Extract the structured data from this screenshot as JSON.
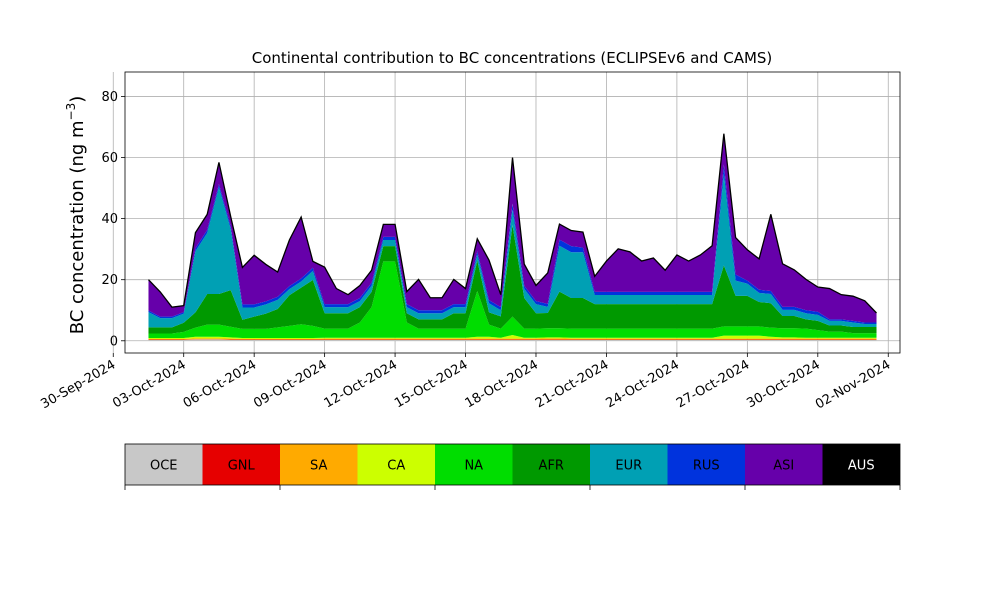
{
  "chart_data": {
    "type": "area",
    "stacked": true,
    "title": "Continental contribution to BC concentrations (ECLIPSEv6 and CAMS)",
    "ylabel": "BC concentration (ng m",
    "ylabel_unit_sup": "−3",
    "ylabel_close": ")",
    "ylim": [
      -4,
      88
    ],
    "yticks": [
      0,
      20,
      40,
      60,
      80
    ],
    "xlim": [
      "2024-09-30T12:00",
      "2024-11-02T12:00"
    ],
    "xticks": [
      "2024-09-30",
      "2024-10-03",
      "2024-10-06",
      "2024-10-09",
      "2024-10-12",
      "2024-10-15",
      "2024-10-18",
      "2024-10-21",
      "2024-10-24",
      "2024-10-27",
      "2024-10-30",
      "2024-11-02"
    ],
    "xtick_labels": [
      "30-Sep-2024",
      "03-Oct-2024",
      "06-Oct-2024",
      "09-Oct-2024",
      "12-Oct-2024",
      "15-Oct-2024",
      "18-Oct-2024",
      "21-Oct-2024",
      "24-Oct-2024",
      "27-Oct-2024",
      "30-Oct-2024",
      "02-Nov-2024"
    ],
    "grid": true,
    "x": [
      "2024-10-01T12:00",
      "2024-10-02T00:00",
      "2024-10-02T12:00",
      "2024-10-03T00:00",
      "2024-10-03T12:00",
      "2024-10-04T00:00",
      "2024-10-04T12:00",
      "2024-10-05T00:00",
      "2024-10-05T12:00",
      "2024-10-06T00:00",
      "2024-10-06T12:00",
      "2024-10-07T00:00",
      "2024-10-07T12:00",
      "2024-10-08T00:00",
      "2024-10-08T12:00",
      "2024-10-09T00:00",
      "2024-10-09T12:00",
      "2024-10-10T00:00",
      "2024-10-10T12:00",
      "2024-10-11T00:00",
      "2024-10-11T12:00",
      "2024-10-12T00:00",
      "2024-10-12T12:00",
      "2024-10-13T00:00",
      "2024-10-13T12:00",
      "2024-10-14T00:00",
      "2024-10-14T12:00",
      "2024-10-15T00:00",
      "2024-10-15T12:00",
      "2024-10-16T00:00",
      "2024-10-16T12:00",
      "2024-10-17T00:00",
      "2024-10-17T12:00",
      "2024-10-18T00:00",
      "2024-10-18T12:00",
      "2024-10-19T00:00",
      "2024-10-19T12:00",
      "2024-10-20T00:00",
      "2024-10-20T12:00",
      "2024-10-21T00:00",
      "2024-10-21T12:00",
      "2024-10-22T00:00",
      "2024-10-22T12:00",
      "2024-10-23T00:00",
      "2024-10-23T12:00",
      "2024-10-24T00:00",
      "2024-10-24T12:00",
      "2024-10-25T00:00",
      "2024-10-25T12:00",
      "2024-10-26T00:00",
      "2024-10-26T12:00",
      "2024-10-27T00:00",
      "2024-10-27T12:00",
      "2024-10-28T00:00",
      "2024-10-28T12:00",
      "2024-10-29T00:00",
      "2024-10-29T12:00",
      "2024-10-30T00:00",
      "2024-10-30T12:00",
      "2024-10-31T00:00",
      "2024-10-31T12:00",
      "2024-11-01T00:00",
      "2024-11-01T12:00"
    ],
    "series": [
      {
        "name": "OCE",
        "color": "#c8c8c8",
        "values": [
          0.3,
          0.3,
          0.3,
          0.3,
          0.4,
          0.4,
          0.4,
          0.3,
          0.3,
          0.3,
          0.3,
          0.3,
          0.3,
          0.3,
          0.3,
          0.3,
          0.3,
          0.3,
          0.3,
          0.3,
          0.3,
          0.3,
          0.3,
          0.3,
          0.3,
          0.3,
          0.3,
          0.3,
          0.3,
          0.3,
          0.3,
          0.3,
          0.3,
          0.3,
          0.3,
          0.3,
          0.3,
          0.3,
          0.3,
          0.3,
          0.3,
          0.3,
          0.3,
          0.3,
          0.3,
          0.3,
          0.3,
          0.3,
          0.3,
          0.3,
          0.3,
          0.3,
          0.3,
          0.3,
          0.3,
          0.3,
          0.3,
          0.3,
          0.3,
          0.3,
          0.3,
          0.3,
          0.3
        ]
      },
      {
        "name": "GNL",
        "color": "#e60000",
        "values": [
          0.1,
          0.1,
          0.1,
          0.1,
          0.1,
          0.1,
          0.1,
          0.1,
          0.1,
          0.1,
          0.1,
          0.1,
          0.1,
          0.1,
          0.1,
          0.1,
          0.1,
          0.1,
          0.1,
          0.1,
          0.1,
          0.1,
          0.1,
          0.1,
          0.1,
          0.1,
          0.1,
          0.1,
          0.1,
          0.1,
          0.1,
          0.1,
          0.1,
          0.1,
          0.1,
          0.1,
          0.1,
          0.1,
          0.1,
          0.1,
          0.1,
          0.1,
          0.1,
          0.1,
          0.1,
          0.1,
          0.1,
          0.1,
          0.1,
          0.1,
          0.1,
          0.1,
          0.1,
          0.1,
          0.1,
          0.1,
          0.1,
          0.1,
          0.1,
          0.1,
          0.1,
          0.1,
          0.1
        ]
      },
      {
        "name": "SA",
        "color": "#ffaa00",
        "values": [
          0.2,
          0.2,
          0.2,
          0.2,
          0.3,
          0.3,
          0.3,
          0.3,
          0.2,
          0.2,
          0.2,
          0.2,
          0.2,
          0.2,
          0.2,
          0.3,
          0.3,
          0.3,
          0.3,
          0.3,
          0.3,
          0.3,
          0.3,
          0.3,
          0.3,
          0.3,
          0.3,
          0.3,
          0.3,
          0.3,
          0.3,
          0.3,
          0.3,
          0.3,
          0.4,
          0.4,
          0.3,
          0.3,
          0.3,
          0.3,
          0.3,
          0.3,
          0.3,
          0.3,
          0.3,
          0.3,
          0.3,
          0.3,
          0.3,
          0.3,
          0.3,
          0.3,
          0.3,
          0.3,
          0.3,
          0.3,
          0.3,
          0.3,
          0.3,
          0.3,
          0.3,
          0.3,
          0.3
        ]
      },
      {
        "name": "CA",
        "color": "#ccff00",
        "values": [
          0.3,
          0.3,
          0.3,
          0.3,
          0.5,
          0.5,
          0.5,
          0.4,
          0.3,
          0.3,
          0.3,
          0.3,
          0.3,
          0.3,
          0.3,
          0.3,
          0.3,
          0.3,
          0.3,
          0.3,
          0.3,
          0.3,
          0.3,
          0.3,
          0.3,
          0.3,
          0.3,
          0.3,
          0.6,
          0.6,
          0.3,
          1.2,
          0.3,
          0.3,
          0.3,
          0.3,
          0.3,
          0.3,
          0.3,
          0.3,
          0.3,
          0.3,
          0.3,
          0.3,
          0.3,
          0.3,
          0.3,
          0.3,
          0.3,
          1.0,
          1.0,
          1.0,
          1.0,
          0.6,
          0.4,
          0.4,
          0.3,
          0.3,
          0.3,
          0.3,
          0.3,
          0.3,
          0.3
        ]
      },
      {
        "name": "NA",
        "color": "#00dd00",
        "values": [
          1.5,
          1.5,
          1.5,
          2.0,
          3.0,
          4.0,
          4.0,
          3.5,
          3.0,
          3.0,
          3.0,
          3.5,
          4.0,
          4.5,
          4.0,
          3.0,
          3.0,
          3.0,
          5.0,
          10.0,
          25.0,
          25.0,
          5.0,
          3.0,
          3.0,
          3.0,
          3.0,
          3.0,
          15.0,
          4.0,
          3.0,
          6.0,
          3.0,
          3.0,
          3.0,
          3.0,
          3.0,
          3.0,
          3.0,
          3.0,
          3.0,
          3.0,
          3.0,
          3.0,
          3.0,
          3.0,
          3.0,
          3.0,
          3.0,
          3.0,
          3.0,
          3.0,
          3.0,
          3.0,
          3.0,
          3.0,
          3.0,
          2.5,
          2.0,
          2.0,
          1.5,
          1.5,
          1.5
        ]
      },
      {
        "name": "AFR",
        "color": "#009900",
        "values": [
          2.0,
          2.0,
          2.0,
          3.0,
          5.0,
          10.0,
          10.0,
          12.0,
          3.0,
          4.0,
          5.0,
          6.0,
          10.0,
          12.0,
          15.0,
          5.0,
          5.0,
          5.0,
          5.0,
          5.0,
          5.0,
          5.0,
          3.0,
          3.0,
          3.0,
          3.0,
          5.0,
          5.0,
          10.0,
          4.0,
          4.0,
          30.0,
          10.0,
          5.0,
          5.0,
          12.0,
          10.0,
          10.0,
          8.0,
          8.0,
          8.0,
          8.0,
          8.0,
          8.0,
          8.0,
          8.0,
          8.0,
          8.0,
          8.0,
          20.0,
          10.0,
          10.0,
          8.0,
          8.0,
          4.0,
          4.0,
          3.0,
          3.0,
          2.0,
          2.0,
          2.0,
          2.0,
          2.0
        ]
      },
      {
        "name": "EUR",
        "color": "#00a0b4",
        "values": [
          5.0,
          3.0,
          3.0,
          3.0,
          20.0,
          20.0,
          35.0,
          20.0,
          4.0,
          3.0,
          3.0,
          3.0,
          2.0,
          2.0,
          3.0,
          2.0,
          2.0,
          2.0,
          2.0,
          2.0,
          2.0,
          2.0,
          2.0,
          2.0,
          2.0,
          2.0,
          2.0,
          2.0,
          2.0,
          3.0,
          2.0,
          5.0,
          3.0,
          3.0,
          2.0,
          15.0,
          15.0,
          15.0,
          3.0,
          3.0,
          3.0,
          3.0,
          3.0,
          3.0,
          3.0,
          3.0,
          3.0,
          3.0,
          3.0,
          30.0,
          5.0,
          4.0,
          3.0,
          3.0,
          2.0,
          2.0,
          2.0,
          2.0,
          1.5,
          1.5,
          1.5,
          1.0,
          1.0
        ]
      },
      {
        "name": "RUS",
        "color": "#0033dd",
        "values": [
          0.5,
          0.5,
          0.5,
          0.5,
          1.0,
          1.0,
          1.0,
          1.0,
          1.0,
          1.0,
          1.0,
          1.0,
          1.0,
          1.0,
          1.0,
          1.0,
          1.0,
          1.0,
          1.0,
          1.0,
          1.0,
          1.0,
          1.0,
          1.0,
          1.0,
          1.0,
          1.0,
          1.0,
          1.0,
          1.0,
          1.0,
          2.0,
          1.0,
          1.0,
          1.0,
          2.0,
          2.0,
          1.5,
          1.0,
          1.0,
          1.0,
          1.0,
          1.0,
          1.0,
          1.0,
          1.0,
          1.0,
          1.0,
          1.0,
          3.0,
          2.0,
          1.0,
          1.0,
          1.0,
          1.0,
          1.0,
          1.0,
          1.0,
          0.5,
          0.5,
          0.5,
          0.5,
          0.5
        ]
      },
      {
        "name": "ASI",
        "color": "#6600aa",
        "values": [
          10.0,
          8.0,
          3.0,
          2.0,
          5.0,
          5.0,
          7.0,
          3.0,
          12.0,
          16.0,
          12.0,
          8.0,
          15.0,
          20.0,
          2.0,
          12.0,
          5.0,
          3.0,
          4.0,
          4.0,
          4.0,
          4.0,
          4.0,
          10.0,
          4.0,
          4.0,
          8.0,
          5.0,
          4.0,
          13.0,
          4.0,
          15.0,
          7.0,
          5.0,
          10.0,
          5.0,
          5.0,
          5.0,
          5.0,
          10.0,
          14.0,
          13.0,
          10.0,
          11.0,
          7.0,
          12.0,
          10.0,
          12.0,
          15.0,
          10.0,
          12.0,
          10.0,
          10.0,
          25.0,
          14.0,
          12.0,
          10.0,
          8.0,
          10.0,
          8.0,
          8.0,
          7.0,
          3.0
        ]
      },
      {
        "name": "AUS",
        "color": "#000000",
        "values": [
          0.1,
          0.1,
          0.1,
          0.1,
          0.1,
          0.1,
          0.1,
          0.1,
          0.1,
          0.1,
          0.1,
          0.1,
          0.1,
          0.1,
          0.1,
          0.1,
          0.1,
          0.1,
          0.1,
          0.1,
          0.1,
          0.1,
          0.1,
          0.1,
          0.1,
          0.1,
          0.1,
          0.1,
          0.1,
          0.1,
          0.1,
          0.1,
          0.1,
          0.1,
          0.1,
          0.1,
          0.1,
          0.1,
          0.1,
          0.1,
          0.1,
          0.1,
          0.1,
          0.1,
          0.1,
          0.1,
          0.1,
          0.1,
          0.1,
          0.1,
          0.1,
          0.1,
          0.1,
          0.1,
          0.1,
          0.1,
          0.1,
          0.1,
          0.1,
          0.1,
          0.1,
          0.1,
          0.1
        ]
      }
    ]
  }
}
